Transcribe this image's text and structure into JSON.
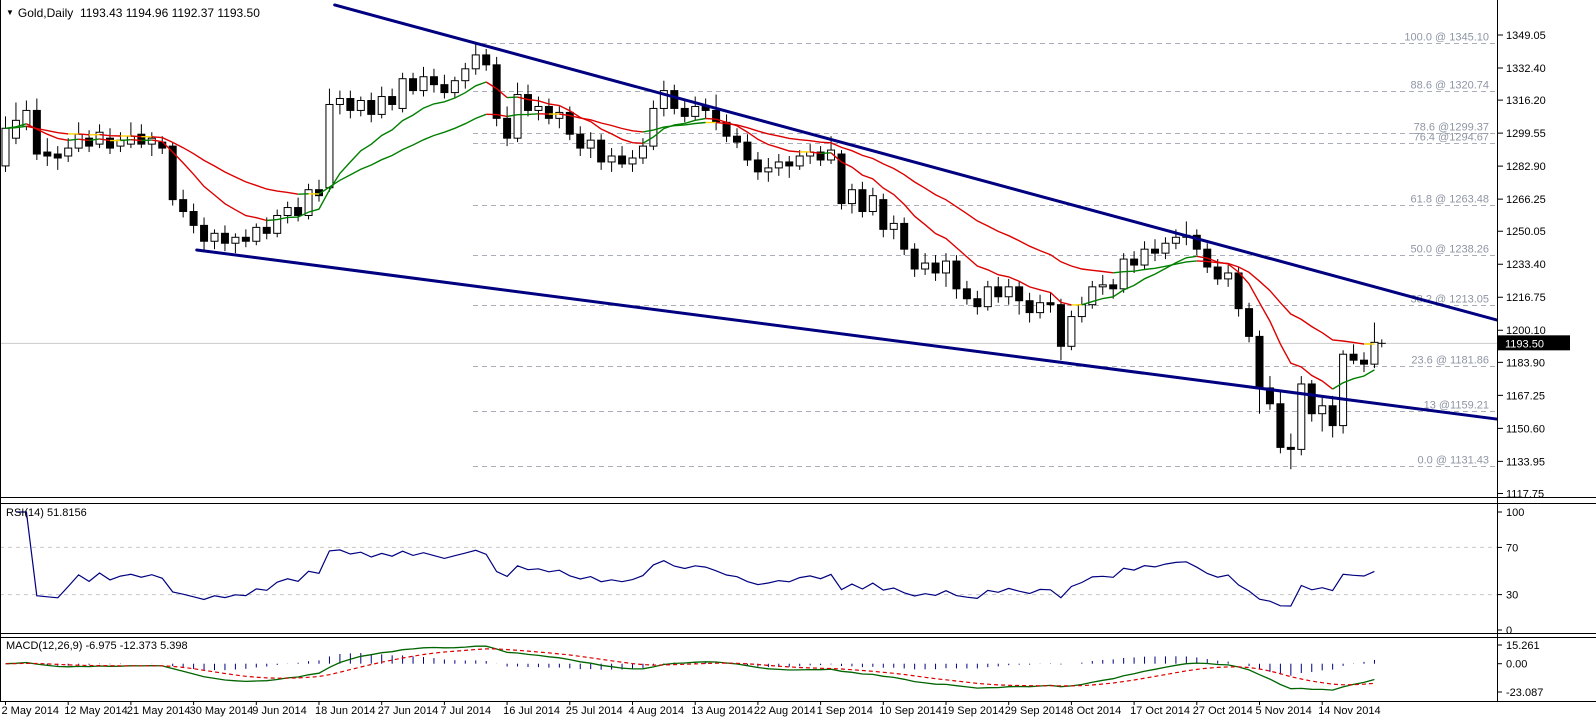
{
  "header": {
    "symbol": "Gold,Daily",
    "quote": "1193.43 1194.96 1192.37 1193.50"
  },
  "chart_data": {
    "type": "candlestick",
    "title": "Gold,Daily",
    "timeframe": "Daily",
    "candles": [
      [
        1283,
        1308,
        1280,
        1302
      ],
      [
        1297,
        1315,
        1294,
        1306
      ],
      [
        1303,
        1316,
        1301,
        1311
      ],
      [
        1311,
        1317,
        1286,
        1289
      ],
      [
        1290,
        1297,
        1283,
        1288
      ],
      [
        1289,
        1293,
        1281,
        1287
      ],
      [
        1288,
        1297,
        1285,
        1292
      ],
      [
        1292,
        1305,
        1290,
        1299
      ],
      [
        1297,
        1301,
        1290,
        1293
      ],
      [
        1294,
        1304,
        1292,
        1300
      ],
      [
        1297,
        1302,
        1289,
        1292
      ],
      [
        1293,
        1300,
        1290,
        1296
      ],
      [
        1294,
        1305,
        1292,
        1298
      ],
      [
        1299,
        1304,
        1292,
        1294
      ],
      [
        1294,
        1300,
        1288,
        1297
      ],
      [
        1295,
        1298,
        1289,
        1292
      ],
      [
        1293,
        1295,
        1263,
        1266
      ],
      [
        1266,
        1271,
        1257,
        1260
      ],
      [
        1260,
        1264,
        1249,
        1253
      ],
      [
        1253,
        1257,
        1240,
        1245
      ],
      [
        1245,
        1251,
        1241,
        1249
      ],
      [
        1249,
        1253,
        1240,
        1244
      ],
      [
        1244,
        1249,
        1239,
        1247
      ],
      [
        1247,
        1251,
        1242,
        1245
      ],
      [
        1245,
        1254,
        1243,
        1252
      ],
      [
        1252,
        1257,
        1246,
        1249
      ],
      [
        1249,
        1261,
        1247,
        1258
      ],
      [
        1258,
        1265,
        1254,
        1262
      ],
      [
        1262,
        1267,
        1255,
        1258
      ],
      [
        1258,
        1274,
        1256,
        1271
      ],
      [
        1271,
        1276,
        1265,
        1268
      ],
      [
        1272,
        1322,
        1270,
        1314
      ],
      [
        1314,
        1321,
        1309,
        1317
      ],
      [
        1317,
        1321,
        1307,
        1311
      ],
      [
        1311,
        1318,
        1308,
        1316
      ],
      [
        1316,
        1320,
        1305,
        1309
      ],
      [
        1309,
        1323,
        1307,
        1318
      ],
      [
        1318,
        1322,
        1311,
        1314
      ],
      [
        1312,
        1330,
        1310,
        1327
      ],
      [
        1327,
        1330,
        1319,
        1321
      ],
      [
        1321,
        1333,
        1318,
        1328
      ],
      [
        1328,
        1332,
        1320,
        1324
      ],
      [
        1324,
        1329,
        1317,
        1320
      ],
      [
        1320,
        1328,
        1317,
        1326
      ],
      [
        1326,
        1335,
        1322,
        1332
      ],
      [
        1332,
        1345,
        1329,
        1339
      ],
      [
        1339,
        1342,
        1331,
        1334
      ],
      [
        1334,
        1338,
        1303,
        1307
      ],
      [
        1307,
        1313,
        1293,
        1297
      ],
      [
        1297,
        1325,
        1295,
        1319
      ],
      [
        1319,
        1324,
        1308,
        1311
      ],
      [
        1311,
        1318,
        1306,
        1313
      ],
      [
        1313,
        1317,
        1304,
        1307
      ],
      [
        1307,
        1313,
        1302,
        1310
      ],
      [
        1310,
        1313,
        1296,
        1299
      ],
      [
        1299,
        1303,
        1288,
        1292
      ],
      [
        1292,
        1300,
        1287,
        1296
      ],
      [
        1296,
        1299,
        1281,
        1285
      ],
      [
        1285,
        1292,
        1280,
        1288
      ],
      [
        1288,
        1293,
        1282,
        1284
      ],
      [
        1284,
        1291,
        1280,
        1287
      ],
      [
        1287,
        1297,
        1284,
        1293
      ],
      [
        1293,
        1316,
        1291,
        1312
      ],
      [
        1312,
        1326,
        1308,
        1321
      ],
      [
        1321,
        1324,
        1309,
        1312
      ],
      [
        1312,
        1317,
        1305,
        1308
      ],
      [
        1308,
        1318,
        1306,
        1313
      ],
      [
        1313,
        1317,
        1307,
        1311
      ],
      [
        1311,
        1319,
        1301,
        1305
      ],
      [
        1305,
        1309,
        1295,
        1298
      ],
      [
        1298,
        1302,
        1292,
        1295
      ],
      [
        1295,
        1299,
        1283,
        1286
      ],
      [
        1286,
        1290,
        1276,
        1280
      ],
      [
        1280,
        1287,
        1275,
        1282
      ],
      [
        1282,
        1289,
        1278,
        1285
      ],
      [
        1285,
        1288,
        1277,
        1283
      ],
      [
        1283,
        1291,
        1281,
        1288
      ],
      [
        1288,
        1294,
        1284,
        1290
      ],
      [
        1290,
        1293,
        1283,
        1286
      ],
      [
        1286,
        1298,
        1284,
        1291
      ],
      [
        1289,
        1291,
        1261,
        1264
      ],
      [
        1264,
        1274,
        1259,
        1271
      ],
      [
        1271,
        1275,
        1257,
        1260
      ],
      [
        1260,
        1272,
        1258,
        1268
      ],
      [
        1266,
        1269,
        1247,
        1251
      ],
      [
        1251,
        1258,
        1246,
        1254
      ],
      [
        1254,
        1257,
        1238,
        1241
      ],
      [
        1241,
        1244,
        1227,
        1231
      ],
      [
        1231,
        1239,
        1228,
        1234
      ],
      [
        1234,
        1238,
        1225,
        1229
      ],
      [
        1229,
        1239,
        1222,
        1235
      ],
      [
        1235,
        1238,
        1216,
        1221
      ],
      [
        1221,
        1225,
        1213,
        1216
      ],
      [
        1216,
        1220,
        1208,
        1212
      ],
      [
        1212,
        1225,
        1210,
        1222
      ],
      [
        1222,
        1227,
        1214,
        1217
      ],
      [
        1217,
        1226,
        1213,
        1222
      ],
      [
        1222,
        1225,
        1208,
        1215
      ],
      [
        1215,
        1219,
        1204,
        1209
      ],
      [
        1209,
        1218,
        1206,
        1214
      ],
      [
        1214,
        1219,
        1209,
        1213
      ],
      [
        1213,
        1216,
        1185,
        1192
      ],
      [
        1192,
        1210,
        1190,
        1207
      ],
      [
        1207,
        1217,
        1204,
        1213
      ],
      [
        1213,
        1225,
        1211,
        1222
      ],
      [
        1222,
        1228,
        1218,
        1223
      ],
      [
        1223,
        1226,
        1216,
        1221
      ],
      [
        1221,
        1239,
        1219,
        1236
      ],
      [
        1236,
        1240,
        1229,
        1233
      ],
      [
        1233,
        1245,
        1231,
        1241
      ],
      [
        1241,
        1246,
        1235,
        1239
      ],
      [
        1239,
        1247,
        1236,
        1244
      ],
      [
        1244,
        1251,
        1241,
        1247
      ],
      [
        1247,
        1255,
        1243,
        1248
      ],
      [
        1248,
        1251,
        1238,
        1241
      ],
      [
        1241,
        1244,
        1229,
        1232
      ],
      [
        1232,
        1236,
        1223,
        1226
      ],
      [
        1226,
        1233,
        1222,
        1229
      ],
      [
        1229,
        1232,
        1207,
        1211
      ],
      [
        1211,
        1214,
        1194,
        1197
      ],
      [
        1197,
        1200,
        1158,
        1171
      ],
      [
        1171,
        1177,
        1160,
        1163
      ],
      [
        1163,
        1170,
        1138,
        1141
      ],
      [
        1141,
        1148,
        1130,
        1140
      ],
      [
        1140,
        1177,
        1137,
        1173
      ],
      [
        1173,
        1175,
        1154,
        1158
      ],
      [
        1158,
        1166,
        1149,
        1162
      ],
      [
        1162,
        1167,
        1146,
        1152
      ],
      [
        1152,
        1190,
        1148,
        1188
      ],
      [
        1188,
        1193,
        1183,
        1185
      ],
      [
        1185,
        1189,
        1179,
        1183
      ],
      [
        1183,
        1204,
        1181,
        1194
      ]
    ],
    "x_axis": {
      "labels": [
        "2 May 2014",
        "12 May 2014",
        "21 May 2014",
        "30 May 2014",
        "9 Jun 2014",
        "18 Jun 2014",
        "27 Jun 2014",
        "7 Jul 2014",
        "16 Jul 2014",
        "25 Jul 2014",
        "4 Aug 2014",
        "13 Aug 2014",
        "22 Aug 2014",
        "1 Sep 2014",
        "10 Sep 2014",
        "19 Sep 2014",
        "29 Sep 2014",
        "8 Oct 2014",
        "17 Oct 2014",
        "27 Oct 2014",
        "5 Nov 2014",
        "14 Nov 2014"
      ],
      "label_step": 6
    },
    "y_axis": {
      "ticks": [
        1349.05,
        1332.4,
        1316.2,
        1299.55,
        1282.9,
        1266.25,
        1250.05,
        1233.4,
        1216.75,
        1200.1,
        1183.9,
        1167.25,
        1150.6,
        1133.95,
        1117.75
      ],
      "current_price": 1193.5,
      "current_price_label": "1193.50"
    },
    "fibonacci": [
      {
        "label": "100.0 @ 1345.10",
        "price": 1345.1
      },
      {
        "label": "88.6 @ 1320.74",
        "price": 1320.74
      },
      {
        "label": "78.6 @1299.37",
        "price": 1299.37
      },
      {
        "label": "76.4 @1294.67",
        "price": 1294.67
      },
      {
        "label": "61.8 @ 1263.48",
        "price": 1263.48
      },
      {
        "label": "50.0 @ 1238.26",
        "price": 1238.26
      },
      {
        "label": "38.2 @ 1213.05",
        "price": 1213.05
      },
      {
        "label": "23.6 @ 1181.86",
        "price": 1181.86
      },
      {
        "label": "13 @1159.21",
        "price": 1159.21
      },
      {
        "label": "0.0 @ 1131.43",
        "price": 1131.43
      }
    ],
    "trendlines": [
      {
        "name": "upper-channel",
        "from": {
          "index": 31.5,
          "price": 1364.2
        },
        "to": {
          "index": 142.7,
          "price": 1205.3
        }
      },
      {
        "name": "lower-channel",
        "from": {
          "index": 18.3,
          "price": 1240.6
        },
        "to": {
          "index": 142.7,
          "price": 1155.3
        }
      }
    ],
    "moving_averages": [
      {
        "period": 10
      },
      {
        "period": 25
      }
    ],
    "current_bar_marker": {
      "index": 131.7,
      "price": 1193.5
    },
    "indicators": {
      "rsi": {
        "label": "RSI(14)",
        "value": "51.8156",
        "period": 14,
        "levels": [
          70,
          30
        ],
        "axis_ticks": [
          {
            "v": 100,
            "t": "100"
          },
          {
            "v": 70,
            "t": "70"
          },
          {
            "v": 30,
            "t": "30"
          },
          {
            "v": 0,
            "t": "0"
          }
        ]
      },
      "macd": {
        "label": "MACD(12,26,9)",
        "values": "-6.975 -12.373 5.398",
        "fast": 12,
        "slow": 26,
        "signal": 9,
        "axis_ticks": [
          {
            "v": 15.261,
            "t": "15.261"
          },
          {
            "v": 0,
            "t": "0.00"
          },
          {
            "v": -23.087,
            "t": "-23.087"
          }
        ]
      }
    },
    "colors": {
      "up": "#ffffff",
      "down": "#000000",
      "wick": "#000000",
      "ma_up": "#008000",
      "ma_down": "#dd0000",
      "ma_flat": "#ffd400",
      "trendline": "#000080",
      "fib_line": "#a9aeb8",
      "fib_text": "#8e96a4",
      "rsi_line": "#000080",
      "level_line": "#c8c8c8",
      "macd_line": "#006400",
      "signal_line": "#dd0000",
      "histogram": "#000080",
      "axis_text": "#000000",
      "border": "#000000",
      "current_line": "#cccccc",
      "current_price_bg": "#000000",
      "current_price_text": "#ffffff"
    }
  }
}
